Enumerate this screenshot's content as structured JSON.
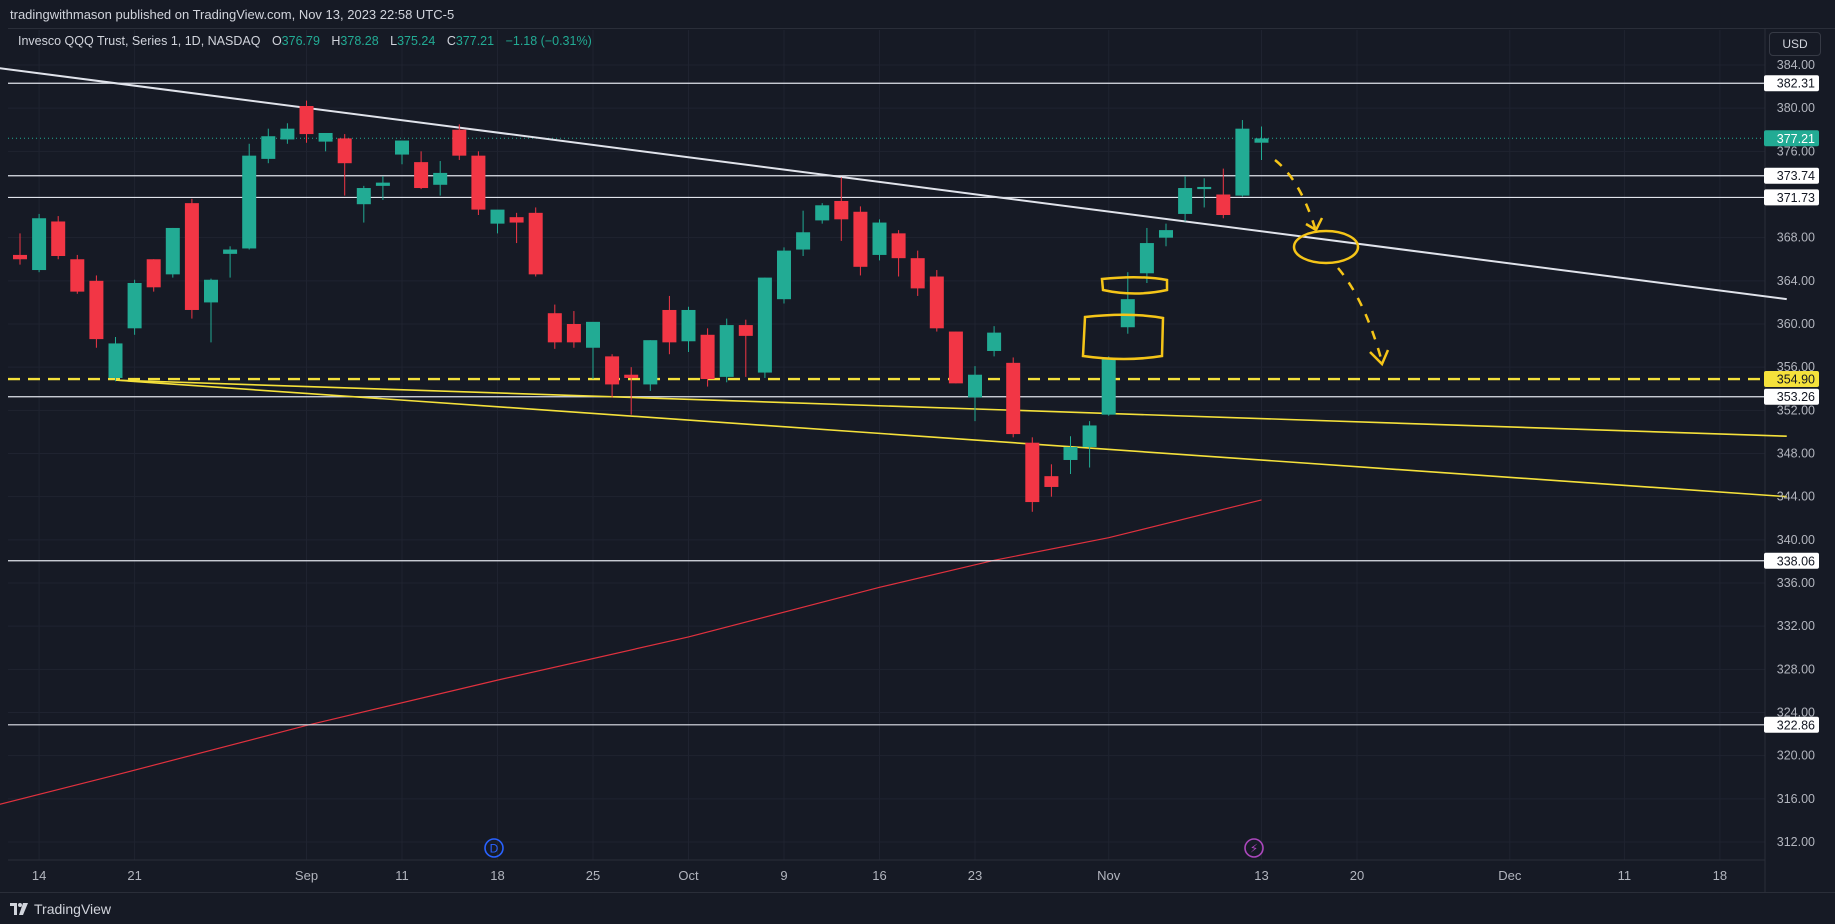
{
  "header": {
    "published_text": "tradingwithmason published on TradingView.com, Nov 13, 2023 22:58 UTC-5"
  },
  "symbol": {
    "name": "Invesco QQQ Trust, Series 1, 1D, NASDAQ",
    "open_label": "O",
    "open": "376.79",
    "high_label": "H",
    "high": "378.28",
    "low_label": "L",
    "low": "375.24",
    "close_label": "C",
    "close": "377.21",
    "change": "−1.18 (−0.31%)"
  },
  "currency_button": "USD",
  "footer": {
    "brand": "TradingView"
  },
  "markers": {
    "dividend": "D",
    "earnings": "⚡"
  },
  "colors": {
    "up": "#22ab94",
    "down": "#f23645",
    "trend": "#e0e3eb",
    "yellow": "#f5e13b",
    "ma": "#e0313e",
    "drawing": "#f5c518"
  },
  "chart_data": {
    "type": "candlestick",
    "ylim": [
      310,
      386
    ],
    "y_ticks": [
      384,
      380,
      376,
      368,
      364,
      360,
      356,
      352,
      348,
      344,
      340,
      336,
      332,
      328,
      324,
      320,
      316,
      312
    ],
    "y_tick_labels": [
      "384.00",
      "380.00",
      "376.00",
      "368.00",
      "364.00",
      "360.00",
      "356.00",
      "352.00",
      "348.00",
      "344.00",
      "340.00",
      "336.00",
      "332.00",
      "328.00",
      "324.00",
      "320.00",
      "316.00",
      "312.00"
    ],
    "x_ticks": [
      {
        "label": "14",
        "day": 1
      },
      {
        "label": "21",
        "day": 6
      },
      {
        "label": "Sep",
        "day": 15
      },
      {
        "label": "11",
        "day": 20
      },
      {
        "label": "18",
        "day": 25
      },
      {
        "label": "25",
        "day": 30
      },
      {
        "label": "Oct",
        "day": 35
      },
      {
        "label": "9",
        "day": 40
      },
      {
        "label": "16",
        "day": 45
      },
      {
        "label": "23",
        "day": 50
      },
      {
        "label": "Nov",
        "day": 57
      },
      {
        "label": "13",
        "day": 65
      },
      {
        "label": "20",
        "day": 70
      },
      {
        "label": "Dec",
        "day": 78
      },
      {
        "label": "11",
        "day": 84
      },
      {
        "label": "18",
        "day": 89
      }
    ],
    "candles": [
      {
        "d": 0,
        "o": 366.4,
        "h": 368.4,
        "l": 365.5,
        "c": 366.0
      },
      {
        "d": 1,
        "o": 365.0,
        "h": 370.2,
        "l": 364.8,
        "c": 369.8
      },
      {
        "d": 2,
        "o": 369.5,
        "h": 370.0,
        "l": 366.0,
        "c": 366.3
      },
      {
        "d": 3,
        "o": 366.0,
        "h": 366.4,
        "l": 362.8,
        "c": 363.0
      },
      {
        "d": 4,
        "o": 364.0,
        "h": 364.5,
        "l": 357.8,
        "c": 358.6
      },
      {
        "d": 5,
        "o": 355.0,
        "h": 358.8,
        "l": 354.7,
        "c": 358.2
      },
      {
        "d": 6,
        "o": 359.6,
        "h": 364.1,
        "l": 359.0,
        "c": 363.8
      },
      {
        "d": 7,
        "o": 366.0,
        "h": 366.0,
        "l": 363.0,
        "c": 363.4
      },
      {
        "d": 8,
        "o": 364.6,
        "h": 368.9,
        "l": 364.3,
        "c": 368.9
      },
      {
        "d": 9,
        "o": 371.2,
        "h": 371.6,
        "l": 360.5,
        "c": 361.3
      },
      {
        "d": 10,
        "o": 362.0,
        "h": 364.2,
        "l": 358.3,
        "c": 364.1
      },
      {
        "d": 11,
        "o": 366.5,
        "h": 367.2,
        "l": 364.3,
        "c": 366.9
      },
      {
        "d": 12,
        "o": 367.0,
        "h": 376.7,
        "l": 366.9,
        "c": 375.6
      },
      {
        "d": 13,
        "o": 375.3,
        "h": 378.1,
        "l": 374.9,
        "c": 377.4
      },
      {
        "d": 14,
        "o": 377.1,
        "h": 378.6,
        "l": 376.7,
        "c": 378.1
      },
      {
        "d": 15,
        "o": 380.2,
        "h": 380.7,
        "l": 376.8,
        "c": 377.6
      },
      {
        "d": 16,
        "o": 376.9,
        "h": 377.0,
        "l": 376.0,
        "c": 377.7
      },
      {
        "d": 17,
        "o": 377.2,
        "h": 377.6,
        "l": 371.9,
        "c": 374.9
      },
      {
        "d": 18,
        "o": 371.1,
        "h": 372.8,
        "l": 369.4,
        "c": 372.6
      },
      {
        "d": 19,
        "o": 372.8,
        "h": 373.7,
        "l": 371.5,
        "c": 373.1
      },
      {
        "d": 20,
        "o": 375.7,
        "h": 376.9,
        "l": 374.8,
        "c": 377.0
      },
      {
        "d": 21,
        "o": 375.0,
        "h": 376.0,
        "l": 372.5,
        "c": 372.6
      },
      {
        "d": 22,
        "o": 372.9,
        "h": 375.1,
        "l": 371.9,
        "c": 374.0
      },
      {
        "d": 23,
        "o": 378.0,
        "h": 378.5,
        "l": 375.2,
        "c": 375.6
      },
      {
        "d": 24,
        "o": 375.6,
        "h": 376.0,
        "l": 370.1,
        "c": 370.6
      },
      {
        "d": 25,
        "o": 369.3,
        "h": 370.4,
        "l": 368.4,
        "c": 370.6
      },
      {
        "d": 26,
        "o": 369.9,
        "h": 370.3,
        "l": 367.5,
        "c": 369.4
      },
      {
        "d": 27,
        "o": 370.3,
        "h": 370.8,
        "l": 364.4,
        "c": 364.6
      },
      {
        "d": 28,
        "o": 361.0,
        "h": 361.8,
        "l": 357.7,
        "c": 358.3
      },
      {
        "d": 29,
        "o": 360.0,
        "h": 361.2,
        "l": 357.8,
        "c": 358.3
      },
      {
        "d": 30,
        "o": 357.8,
        "h": 359.8,
        "l": 354.9,
        "c": 360.2
      },
      {
        "d": 31,
        "o": 357.0,
        "h": 357.2,
        "l": 353.2,
        "c": 354.4
      },
      {
        "d": 32,
        "o": 355.3,
        "h": 356.0,
        "l": 351.6,
        "c": 355.0
      },
      {
        "d": 33,
        "o": 354.4,
        "h": 358.5,
        "l": 353.8,
        "c": 358.5
      },
      {
        "d": 34,
        "o": 361.3,
        "h": 362.6,
        "l": 357.2,
        "c": 358.3
      },
      {
        "d": 35,
        "o": 358.4,
        "h": 361.6,
        "l": 357.4,
        "c": 361.3
      },
      {
        "d": 36,
        "o": 359.0,
        "h": 359.6,
        "l": 354.2,
        "c": 354.9
      },
      {
        "d": 37,
        "o": 355.1,
        "h": 360.5,
        "l": 354.6,
        "c": 359.9
      },
      {
        "d": 38,
        "o": 359.9,
        "h": 360.4,
        "l": 355.1,
        "c": 358.9
      },
      {
        "d": 39,
        "o": 355.5,
        "h": 364.3,
        "l": 355.0,
        "c": 364.3
      },
      {
        "d": 40,
        "o": 362.3,
        "h": 367.1,
        "l": 361.9,
        "c": 366.8
      },
      {
        "d": 41,
        "o": 366.9,
        "h": 370.5,
        "l": 366.3,
        "c": 368.5
      },
      {
        "d": 42,
        "o": 369.6,
        "h": 371.2,
        "l": 369.3,
        "c": 371.0
      },
      {
        "d": 43,
        "o": 371.4,
        "h": 373.6,
        "l": 367.7,
        "c": 369.7
      },
      {
        "d": 44,
        "o": 370.4,
        "h": 370.9,
        "l": 364.5,
        "c": 365.3
      },
      {
        "d": 45,
        "o": 366.4,
        "h": 369.7,
        "l": 365.9,
        "c": 369.4
      },
      {
        "d": 46,
        "o": 368.4,
        "h": 368.7,
        "l": 364.4,
        "c": 366.1
      },
      {
        "d": 47,
        "o": 366.1,
        "h": 366.8,
        "l": 362.6,
        "c": 363.3
      },
      {
        "d": 48,
        "o": 364.4,
        "h": 365.0,
        "l": 359.3,
        "c": 359.6
      },
      {
        "d": 49,
        "o": 359.3,
        "h": 359.3,
        "l": 354.5,
        "c": 354.5
      },
      {
        "d": 50,
        "o": 353.2,
        "h": 356.1,
        "l": 351.0,
        "c": 355.3
      },
      {
        "d": 51,
        "o": 357.5,
        "h": 359.8,
        "l": 357.0,
        "c": 359.2
      },
      {
        "d": 52,
        "o": 356.4,
        "h": 356.9,
        "l": 349.5,
        "c": 349.8
      },
      {
        "d": 53,
        "o": 349.0,
        "h": 349.5,
        "l": 342.6,
        "c": 343.5
      },
      {
        "d": 54,
        "o": 345.9,
        "h": 347.0,
        "l": 344.0,
        "c": 344.9
      },
      {
        "d": 55,
        "o": 347.4,
        "h": 349.6,
        "l": 346.1,
        "c": 348.6
      },
      {
        "d": 56,
        "o": 348.6,
        "h": 351.0,
        "l": 346.7,
        "c": 350.6
      },
      {
        "d": 57,
        "o": 351.6,
        "h": 357.0,
        "l": 351.5,
        "c": 356.8
      },
      {
        "d": 58,
        "o": 359.7,
        "h": 364.8,
        "l": 359.1,
        "c": 362.3
      },
      {
        "d": 59,
        "o": 364.7,
        "h": 368.9,
        "l": 363.8,
        "c": 367.5
      },
      {
        "d": 60,
        "o": 368.0,
        "h": 369.3,
        "l": 367.2,
        "c": 368.7
      },
      {
        "d": 61,
        "o": 370.2,
        "h": 373.7,
        "l": 369.5,
        "c": 372.6
      },
      {
        "d": 62,
        "o": 372.5,
        "h": 373.5,
        "l": 370.8,
        "c": 372.7
      },
      {
        "d": 63,
        "o": 372.0,
        "h": 374.4,
        "l": 369.8,
        "c": 370.1
      },
      {
        "d": 64,
        "o": 371.9,
        "h": 378.9,
        "l": 371.8,
        "c": 378.1
      },
      {
        "d": 65,
        "o": 376.8,
        "h": 378.3,
        "l": 375.2,
        "c": 377.2
      }
    ],
    "horizontal_levels": [
      {
        "value": 382.31,
        "label": "382.31"
      },
      {
        "value": 373.74,
        "label": "373.74"
      },
      {
        "value": 371.73,
        "label": "371.73"
      },
      {
        "value": 353.26,
        "label": "353.26"
      },
      {
        "value": 338.06,
        "label": "338.06"
      },
      {
        "value": 322.86,
        "label": "322.86"
      }
    ],
    "dashed_level": {
      "value": 354.9,
      "label": "354.90"
    },
    "last_price": {
      "value": 377.21,
      "label": "377.21"
    },
    "trendlines": [
      {
        "color": "white",
        "from": {
          "d": -1.5,
          "v": 383.8
        },
        "to": {
          "d": 92.5,
          "v": 362.3
        }
      },
      {
        "color": "yellow",
        "from": {
          "d": 5,
          "v": 354.8
        },
        "to": {
          "d": 92.5,
          "v": 349.6
        }
      },
      {
        "color": "yellow",
        "from": {
          "d": 5,
          "v": 354.8
        },
        "to": {
          "d": 92.5,
          "v": 344.0
        }
      }
    ],
    "moving_average": [
      {
        "d": -1.5,
        "v": 315.3
      },
      {
        "d": 5,
        "v": 318.2
      },
      {
        "d": 15,
        "v": 322.8
      },
      {
        "d": 25,
        "v": 327.0
      },
      {
        "d": 35,
        "v": 331.0
      },
      {
        "d": 45,
        "v": 335.6
      },
      {
        "d": 51,
        "v": 338.1
      },
      {
        "d": 57,
        "v": 340.2
      },
      {
        "d": 65,
        "v": 343.7
      }
    ]
  }
}
